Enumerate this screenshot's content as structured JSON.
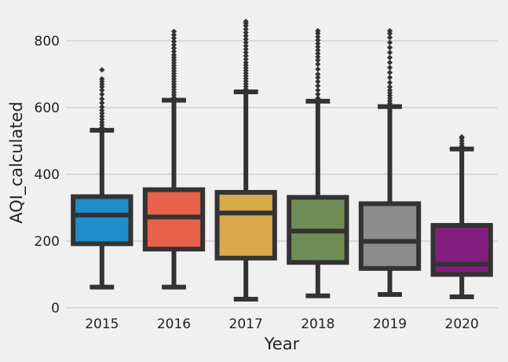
{
  "chart_data": {
    "type": "box",
    "xlabel": "Year",
    "ylabel": "AQI_calculated",
    "ylim": [
      0,
      860
    ],
    "yticks": [
      0,
      200,
      400,
      600,
      800
    ],
    "grid": true,
    "categories": [
      "2015",
      "2016",
      "2017",
      "2018",
      "2019",
      "2020"
    ],
    "boxes": [
      {
        "category": "2015",
        "color": "#1f8dc9",
        "whisker_low": 62,
        "q1": 192,
        "median": 278,
        "q3": 333,
        "whisker_high": 532,
        "outliers": [
          540,
          548,
          556,
          565,
          574,
          583,
          592,
          602,
          614,
          626,
          640,
          652,
          662,
          670,
          678,
          686,
          713
        ]
      },
      {
        "category": "2016",
        "color": "#e8614a",
        "whisker_low": 62,
        "q1": 176,
        "median": 272,
        "q3": 354,
        "whisker_high": 622,
        "outliers": [
          630,
          638,
          646,
          654,
          662,
          670,
          678,
          686,
          694,
          702,
          710,
          718,
          726,
          734,
          742,
          750,
          758,
          768,
          778,
          788,
          798,
          808,
          818,
          828
        ]
      },
      {
        "category": "2017",
        "color": "#d9a94b",
        "whisker_low": 26,
        "q1": 149,
        "median": 284,
        "q3": 346,
        "whisker_high": 647,
        "outliers": [
          655,
          663,
          671,
          679,
          687,
          695,
          703,
          711,
          719,
          727,
          735,
          745,
          755,
          765,
          775,
          785,
          795,
          805,
          815,
          825,
          835,
          845,
          852,
          858
        ]
      },
      {
        "category": "2018",
        "color": "#6f8d55",
        "whisker_low": 36,
        "q1": 136,
        "median": 230,
        "q3": 331,
        "whisker_high": 619,
        "outliers": [
          628,
          640,
          652,
          665,
          678,
          690,
          700,
          715,
          730,
          742,
          752,
          762,
          772,
          782,
          792,
          802,
          812,
          822,
          830
        ]
      },
      {
        "category": "2019",
        "color": "#8c8c8c",
        "whisker_low": 40,
        "q1": 118,
        "median": 199,
        "q3": 312,
        "whisker_high": 603,
        "outliers": [
          612,
          620,
          628,
          636,
          644,
          652,
          662,
          675,
          690,
          705,
          720,
          735,
          750,
          765,
          780,
          795,
          810,
          822,
          830
        ]
      },
      {
        "category": "2020",
        "color": "#841e7f",
        "whisker_low": 33,
        "q1": 100,
        "median": 131,
        "q3": 247,
        "whisker_high": 476,
        "outliers": [
          485,
          492,
          500,
          508,
          512
        ]
      }
    ]
  }
}
